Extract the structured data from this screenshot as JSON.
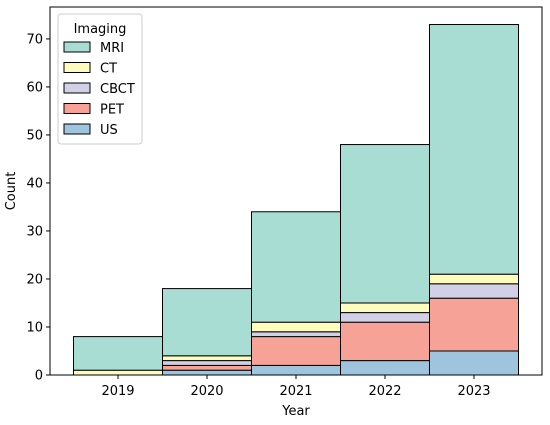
{
  "chart_data": {
    "type": "bar",
    "stacked": true,
    "categories": [
      "2019",
      "2020",
      "2021",
      "2022",
      "2023"
    ],
    "series": [
      {
        "name": "US",
        "color": "#9ec4de",
        "values": [
          0,
          1,
          2,
          3,
          5
        ]
      },
      {
        "name": "PET",
        "color": "#f7a297",
        "values": [
          0,
          1,
          6,
          8,
          11
        ]
      },
      {
        "name": "CBCT",
        "color": "#d1d0e6",
        "values": [
          0,
          1,
          1,
          2,
          3
        ]
      },
      {
        "name": "CT",
        "color": "#fdfcbd",
        "values": [
          1,
          1,
          2,
          2,
          2
        ]
      },
      {
        "name": "MRI",
        "color": "#a8ddd3",
        "values": [
          7,
          14,
          23,
          33,
          52
        ]
      }
    ],
    "xlabel": "Year",
    "ylabel": "Count",
    "ylim": [
      0,
      76.65
    ],
    "yticks": [
      0,
      10,
      20,
      30,
      40,
      50,
      60,
      70
    ],
    "legend": {
      "title": "Imaging",
      "placement": "top-left",
      "order": [
        "MRI",
        "CT",
        "CBCT",
        "PET",
        "US"
      ]
    },
    "grid": false
  }
}
